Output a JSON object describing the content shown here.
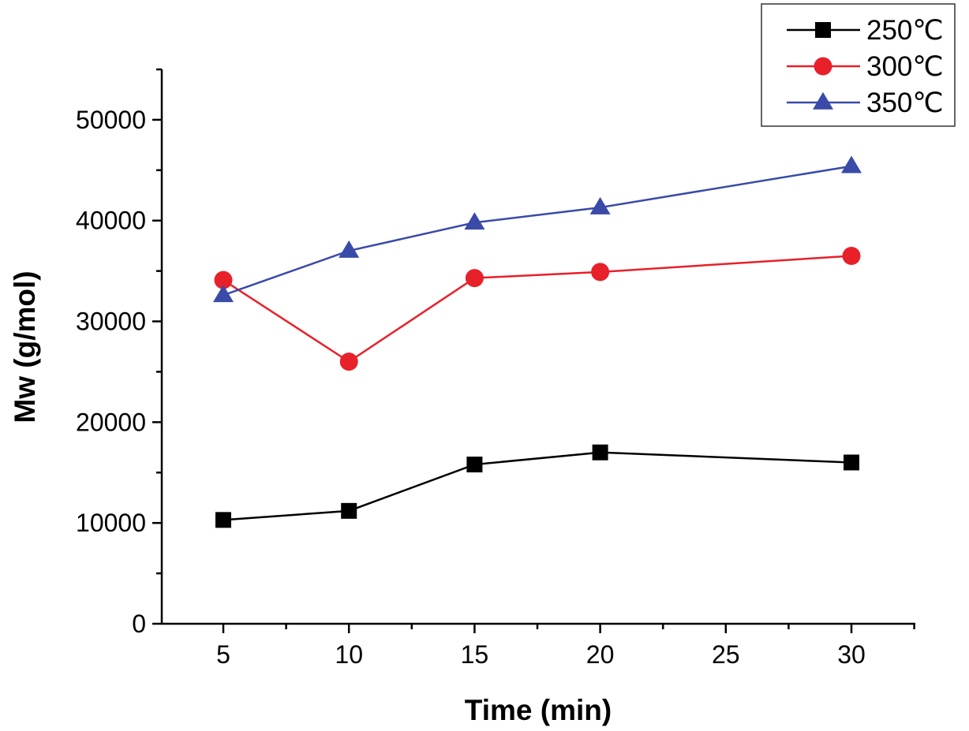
{
  "chart_data": {
    "type": "line",
    "x_categories": [
      "5",
      "10",
      "15",
      "20",
      "25",
      "30"
    ],
    "x": [
      5,
      10,
      15,
      20,
      30
    ],
    "xlabel": "Time (min)",
    "ylabel": "Mw (g/mol)",
    "ylim": [
      0,
      55000
    ],
    "yticks": [
      "0",
      "10000",
      "20000",
      "30000",
      "40000",
      "50000"
    ],
    "grid": false,
    "legend_position": "top-right",
    "series": [
      {
        "name": "250℃",
        "marker": "square",
        "color": "#000000",
        "values": [
          10300,
          11200,
          15800,
          17000,
          16000
        ]
      },
      {
        "name": "300℃",
        "marker": "circle",
        "color": "#e8202a",
        "values": [
          34100,
          26000,
          34300,
          34900,
          36500
        ]
      },
      {
        "name": "350℃",
        "marker": "triangle",
        "color": "#3a4aa8",
        "values": [
          32600,
          37000,
          39800,
          41300,
          45400
        ]
      }
    ]
  }
}
